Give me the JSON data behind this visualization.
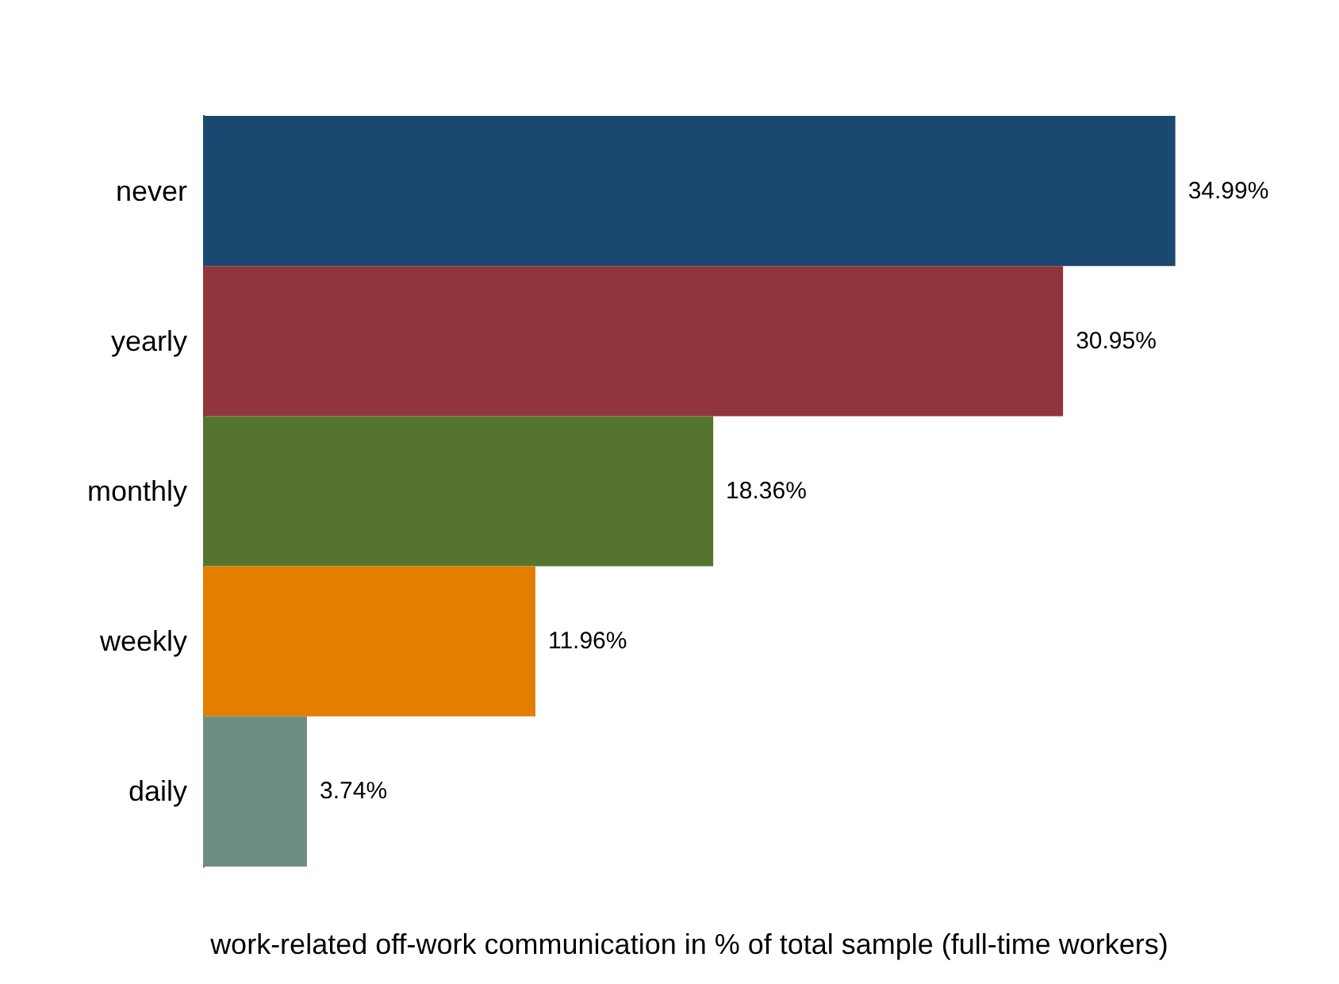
{
  "chart_data": {
    "type": "bar",
    "orientation": "horizontal",
    "xlabel": "work-related off-work communication in % of total sample (full-time workers)",
    "categories": [
      "never",
      "yearly",
      "monthly",
      "weekly",
      "daily"
    ],
    "values": [
      34.99,
      30.95,
      18.36,
      11.96,
      3.74
    ],
    "colors": [
      "#1b4870",
      "#90353b",
      "#55752f",
      "#e37e00",
      "#6e8e84"
    ],
    "value_labels": [
      "34.99%",
      "30.95%",
      "18.36%",
      "11.96%",
      "3.74%"
    ]
  }
}
